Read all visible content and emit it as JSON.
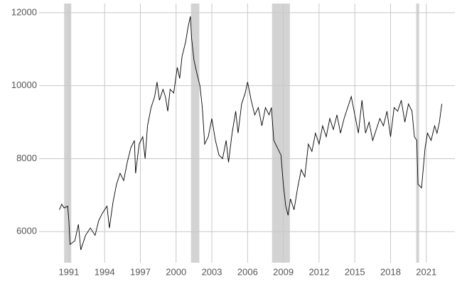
{
  "chart_data": {
    "type": "line",
    "x": [
      1990.2,
      1990.4,
      1990.6,
      1990.9,
      1991.0,
      1991.1,
      1991.5,
      1991.8,
      1992.0,
      1992.4,
      1992.8,
      1993.2,
      1993.5,
      1993.8,
      1994.2,
      1994.4,
      1994.7,
      1995.0,
      1995.3,
      1995.6,
      1995.9,
      1996.2,
      1996.5,
      1996.6,
      1996.9,
      1997.2,
      1997.4,
      1997.6,
      1997.9,
      1998.2,
      1998.4,
      1998.6,
      1998.9,
      1999.1,
      1999.3,
      1999.5,
      1999.8,
      2000.1,
      2000.3,
      2000.5,
      2000.8,
      2001.0,
      2001.2,
      2001.3,
      2001.5,
      2001.7,
      2002.0,
      2002.2,
      2002.4,
      2002.7,
      2003.0,
      2003.3,
      2003.6,
      2003.9,
      2004.2,
      2004.4,
      2004.7,
      2005.0,
      2005.2,
      2005.5,
      2005.8,
      2006.0,
      2006.3,
      2006.6,
      2006.9,
      2007.2,
      2007.5,
      2007.8,
      2008.0,
      2008.2,
      2008.5,
      2008.8,
      2009.0,
      2009.2,
      2009.4,
      2009.6,
      2009.9,
      2010.2,
      2010.5,
      2010.8,
      2011.1,
      2011.4,
      2011.7,
      2012.0,
      2012.3,
      2012.6,
      2012.9,
      2013.2,
      2013.5,
      2013.8,
      2014.1,
      2014.4,
      2014.7,
      2015.0,
      2015.3,
      2015.6,
      2015.9,
      2016.2,
      2016.5,
      2016.8,
      2017.1,
      2017.4,
      2017.7,
      2018.0,
      2018.3,
      2018.6,
      2018.9,
      2019.2,
      2019.5,
      2019.8,
      2020.0,
      2020.2,
      2020.3,
      2020.6,
      2020.9,
      2021.1,
      2021.4,
      2021.7,
      2021.9,
      2022.1,
      2022.3
    ],
    "series": [
      {
        "color": "#000000",
        "values": [
          6600,
          6750,
          6650,
          6700,
          6300,
          5650,
          5750,
          6200,
          5500,
          5900,
          6100,
          5900,
          6300,
          6500,
          6700,
          6100,
          6800,
          7300,
          7600,
          7400,
          7900,
          8300,
          8500,
          7600,
          8400,
          8600,
          8000,
          8900,
          9400,
          9700,
          10100,
          9600,
          9900,
          9700,
          9300,
          9900,
          9800,
          10500,
          10200,
          10800,
          11200,
          11600,
          11900,
          11300,
          10700,
          10400,
          10000,
          9400,
          8400,
          8600,
          9100,
          8500,
          8100,
          8000,
          8500,
          7900,
          8700,
          9300,
          8700,
          9500,
          9800,
          10100,
          9600,
          9200,
          9400,
          8900,
          9400,
          9200,
          9400,
          8500,
          8300,
          8100,
          7300,
          6700,
          6450,
          6900,
          6600,
          7200,
          7700,
          7500,
          8400,
          8200,
          8700,
          8400,
          8900,
          8600,
          9100,
          8800,
          9200,
          8700,
          9100,
          9400,
          9700,
          9200,
          8700,
          9600,
          8700,
          9000,
          8500,
          8800,
          9100,
          8900,
          9300,
          8600,
          9400,
          9300,
          9600,
          9000,
          9500,
          9300,
          8600,
          8500,
          7300,
          7200,
          8300,
          8700,
          8500,
          8900,
          8700,
          9000,
          9500
        ]
      }
    ],
    "shaded_periods": [
      [
        1990.6,
        1991.2
      ],
      [
        2001.25,
        2001.95
      ],
      [
        2008.05,
        2009.55
      ],
      [
        2020.15,
        2020.4
      ]
    ],
    "shade_color": "#d3d3d3",
    "xlim": [
      1988.5,
      2023.4
    ],
    "xticks": [
      1991,
      1994,
      1997,
      2000,
      2003,
      2006,
      2009,
      2012,
      2015,
      2018,
      2021
    ],
    "ylim": [
      5150,
      12250
    ],
    "yticks": [
      6000,
      8000,
      10000,
      12000
    ],
    "grid": true
  }
}
